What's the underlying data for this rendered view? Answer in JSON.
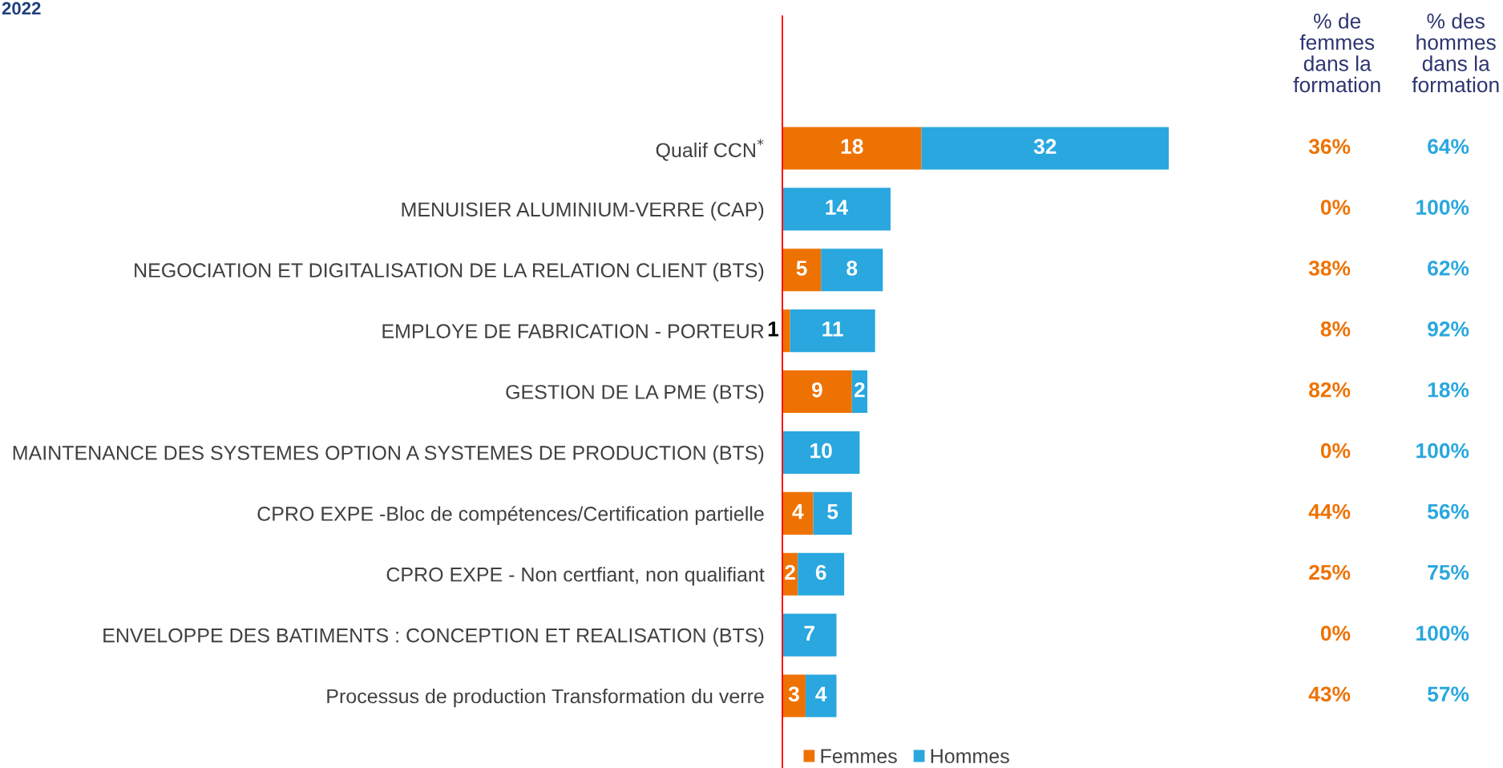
{
  "chart_data": [
    {
      "type": "bar",
      "title": "2022",
      "orientation": "horizontal",
      "stacked": true,
      "categories": [
        "Qualif CCN$^{*}$",
        "MENUISIER ALUMINIUM-VERRE (CAP)",
        "NEGOCIATION ET DIGITALISATION DE LA RELATION CLIENT (BTS)",
        "EMPLOYE DE FABRICATION - PORTEUR",
        "GESTION DE LA PME (BTS)",
        "MAINTENANCE DES SYSTEMES OPTION A SYSTEMES DE PRODUCTION (BTS)",
        "CPRO EXPE -Bloc de compétences/Certification partielle",
        "CPRO EXPE - Non certfiant, non qualifiant",
        "ENVELOPPE DES BATIMENTS : CONCEPTION ET REALISATION (BTS)",
        "Processus de production Transformation du verre"
      ],
      "series": [
        {
          "name": "Femmes",
          "color": "#ee7202",
          "values": [
            18,
            0,
            5,
            1,
            9,
            0,
            4,
            2,
            0,
            3
          ],
          "value_labels": [
            "18",
            null,
            "5",
            "1",
            "9",
            null,
            "4",
            "2",
            null,
            "3"
          ]
        },
        {
          "name": "Hommes",
          "color": "#29a7de",
          "values": [
            32,
            14,
            8,
            11,
            2,
            10,
            5,
            6,
            7,
            4
          ],
          "value_labels": [
            "32",
            "14",
            "8",
            "11",
            "2",
            "10",
            "5",
            "6",
            "7",
            "4"
          ]
        }
      ],
      "tick_labels": "y",
      "legend": "bottom",
      "ref_lines": [
        {
          "axis": "x",
          "value": 0,
          "color": "#ff0000"
        }
      ]
    },
    {
      "type": "other",
      "annotations": [
        "% de\nfemmes\ndans la\nformation",
        "36%",
        "0%",
        "38%",
        "8%",
        "82%",
        "0%",
        "44%",
        "25%",
        "0%",
        "43%"
      ]
    },
    {
      "type": "other",
      "annotations": [
        "% des\nhommes\ndans la\nformation",
        "64%",
        "100%",
        "62%",
        "92%",
        "18%",
        "100%",
        "56%",
        "75%",
        "100%",
        "57%"
      ]
    }
  ]
}
